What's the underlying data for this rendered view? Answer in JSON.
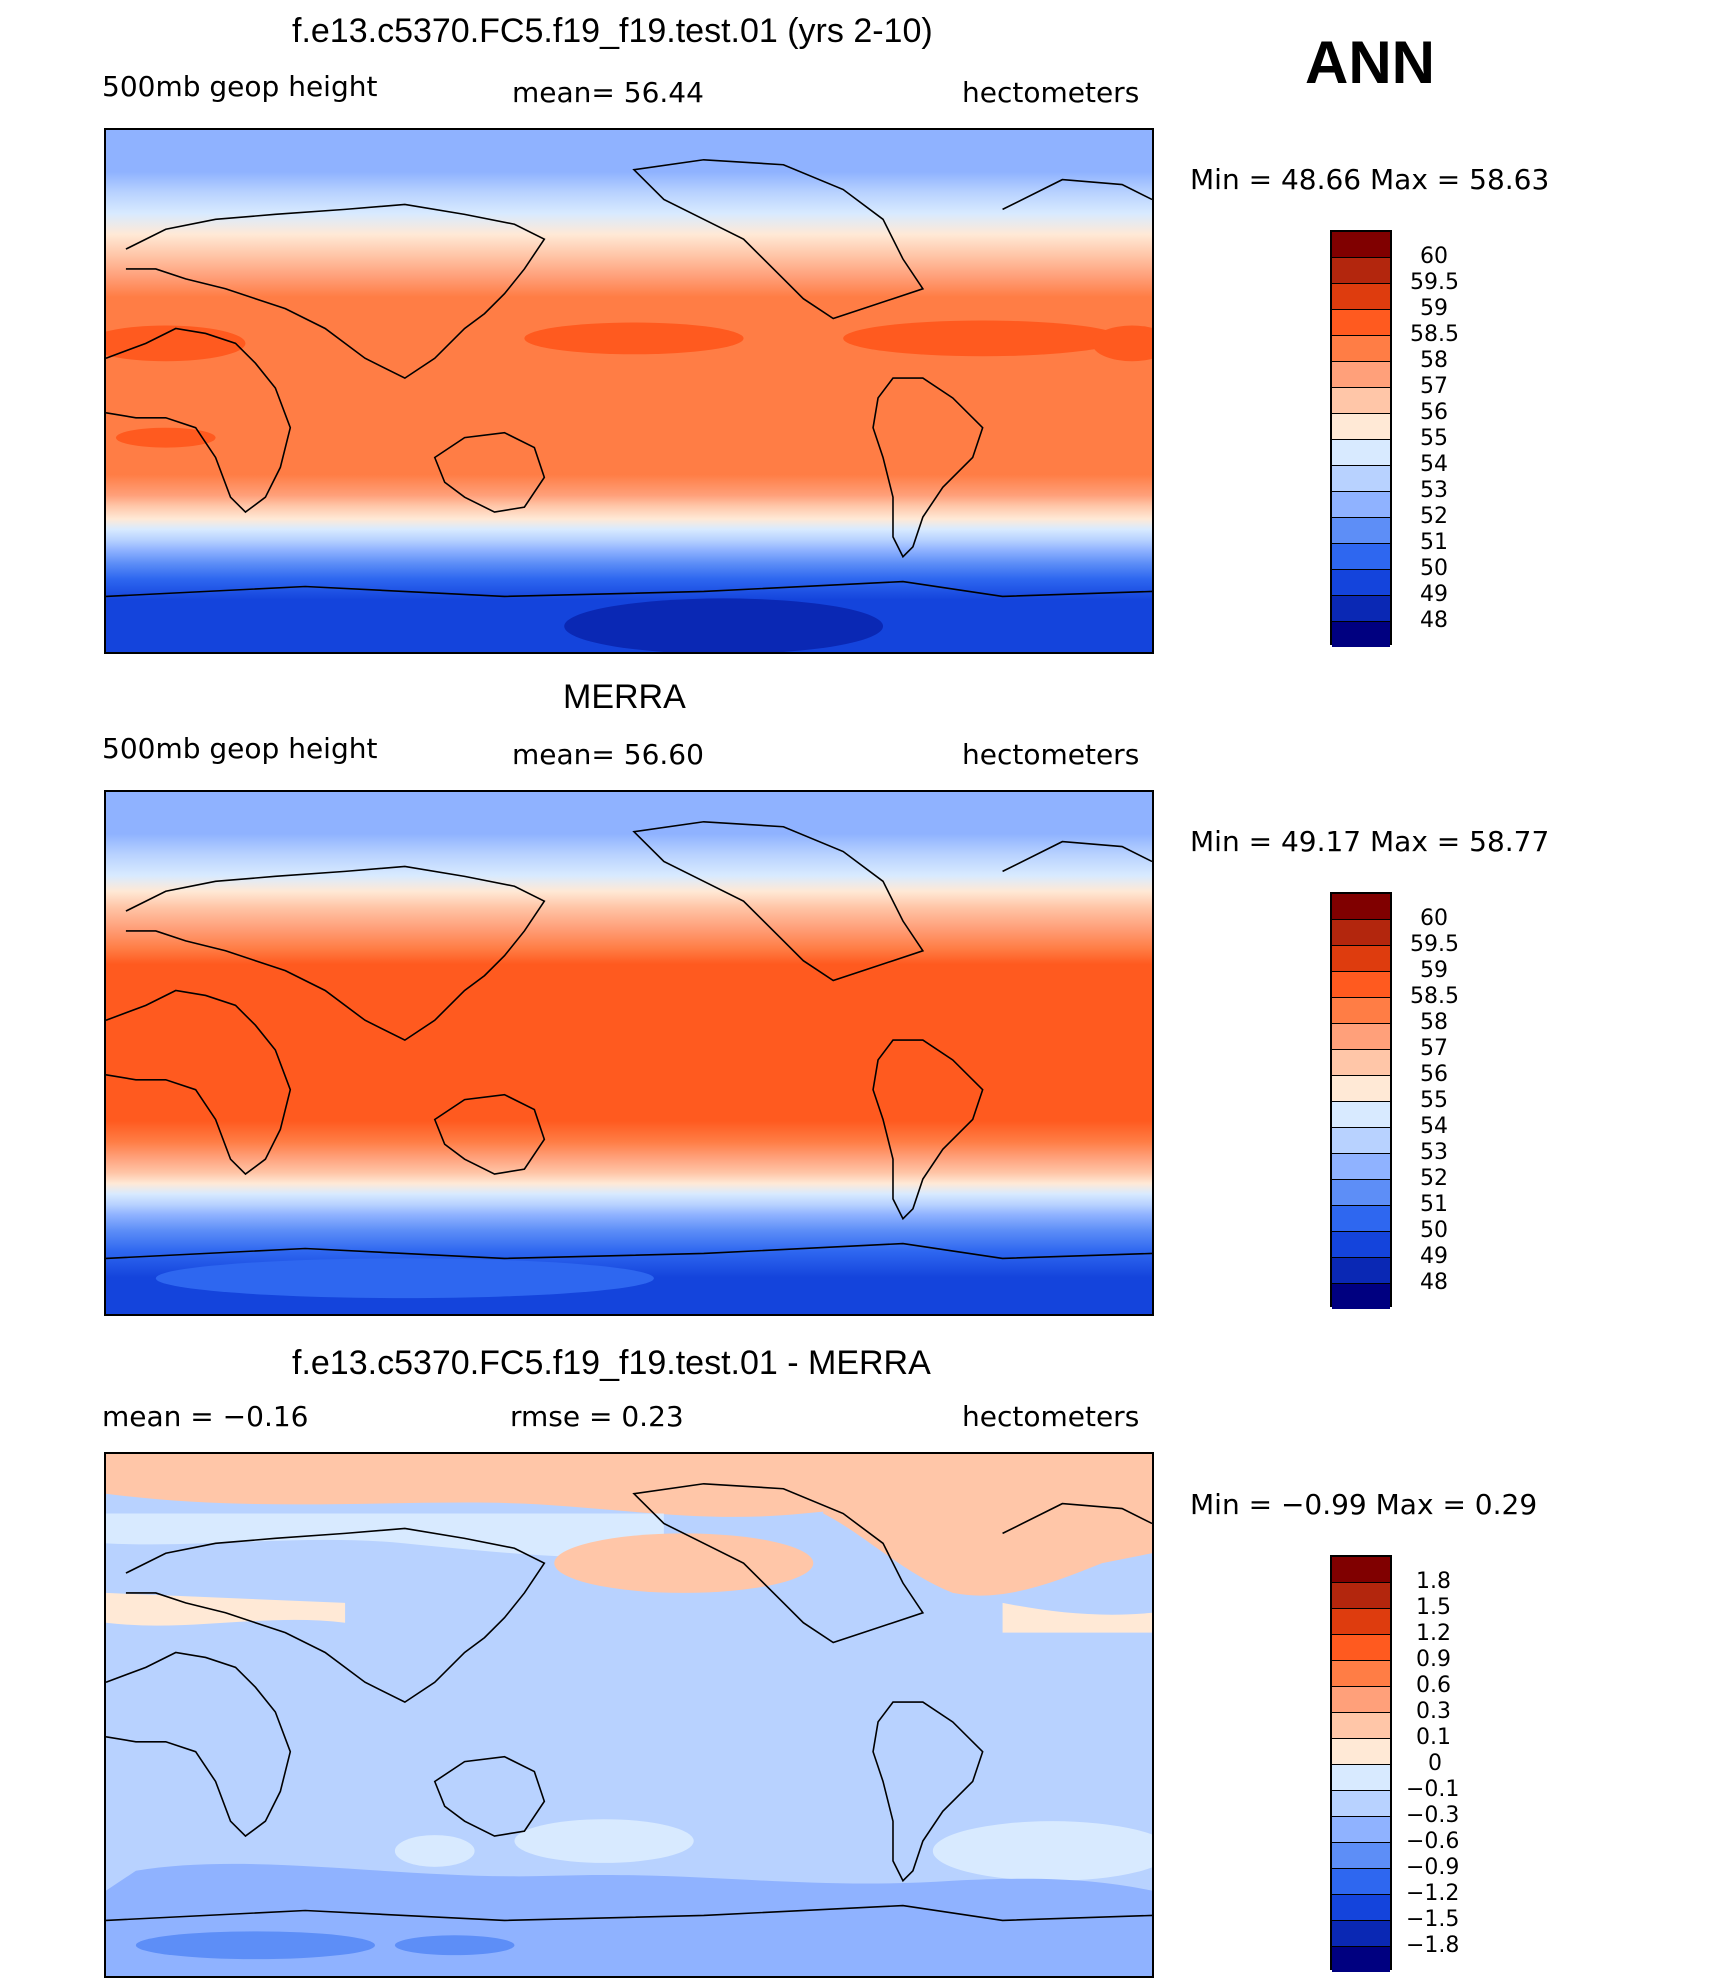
{
  "season": "ANN",
  "panels": [
    {
      "title": "f.e13.c5370.FC5.f19_f19.test.01 (yrs 2-10)",
      "left_text": "500mb geop height",
      "center_text": "mean=   56.44",
      "right_text": "hectometers",
      "minmax_text": "Min  =    48.66  Max  =    58.63",
      "colorbar_labels": [
        "60",
        "59.5",
        "59",
        "58.5",
        "58",
        "57",
        "56",
        "55",
        "54",
        "53",
        "52",
        "51",
        "50",
        "49",
        "48"
      ]
    },
    {
      "title": "MERRA",
      "left_text": "500mb geop height",
      "center_text": "mean=   56.60",
      "right_text": "hectometers",
      "minmax_text": "Min  =    49.17  Max  =    58.77",
      "colorbar_labels": [
        "60",
        "59.5",
        "59",
        "58.5",
        "58",
        "57",
        "56",
        "55",
        "54",
        "53",
        "52",
        "51",
        "50",
        "49",
        "48"
      ]
    },
    {
      "title": "f.e13.c5370.FC5.f19_f19.test.01 - MERRA",
      "left_text": "mean  =    −0.16",
      "center_text": "rmse  =     0.23",
      "right_text": "hectometers",
      "minmax_text": "Min  =    −0.99  Max  =      0.29",
      "colorbar_labels": [
        "1.8",
        "1.5",
        "1.2",
        "0.9",
        "0.6",
        "0.3",
        "0.1",
        "0",
        "−0.1",
        "−0.3",
        "−0.6",
        "−0.9",
        "−1.2",
        "−1.5",
        "−1.8"
      ]
    }
  ],
  "colors": {
    "colorbar_full": [
      "#800000",
      "#b3260d",
      "#de3c0e",
      "#ff5a1f",
      "#ff7d45",
      "#ffa07a",
      "#ffc6a8",
      "#ffe9d6",
      "#d8eaff",
      "#b8d2ff",
      "#8fb2ff",
      "#5d8ef7",
      "#2e67f0",
      "#1444dc",
      "#0a28b4",
      "#000080"
    ],
    "colorbar_abs": [
      "#800000",
      "#b3260d",
      "#de3c0e",
      "#ff5a1f",
      "#ff7d45",
      "#ffa07a",
      "#ffc6a8",
      "#ffe9d6",
      "#d8eaff",
      "#b8d2ff",
      "#8fb2ff",
      "#5d8ef7",
      "#2e67f0",
      "#1444dc",
      "#0a28b4",
      "#000080"
    ],
    "colorbar_diff": [
      "#800000",
      "#b3260d",
      "#de3c0e",
      "#ff5a1f",
      "#ff7d45",
      "#ffa07a",
      "#ffc6a8",
      "#ffe9d6",
      "#d8eaff",
      "#b8d2ff",
      "#8fb2ff",
      "#5d8ef7",
      "#2e67f0",
      "#1444dc",
      "#0a28b4",
      "#000080"
    ]
  }
}
